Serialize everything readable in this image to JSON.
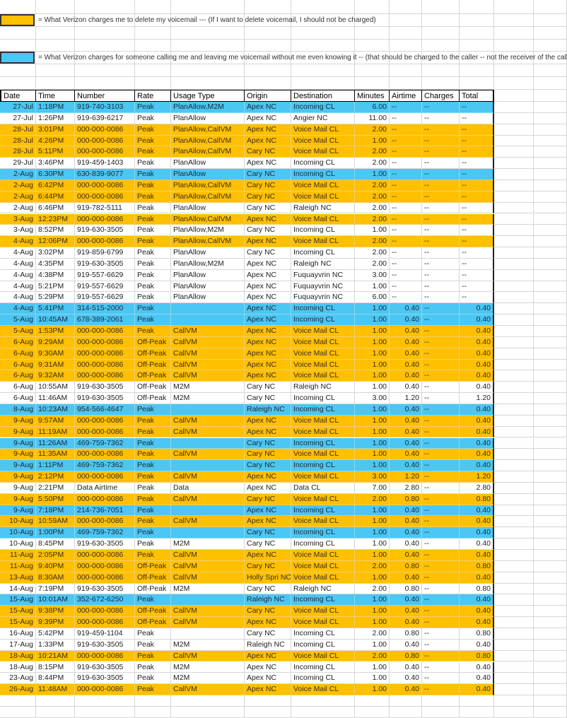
{
  "legend": [
    {
      "color": "#FFC000",
      "text": "= What Verizon charges me to delete my voicemail --- (If I want to delete voicemail, I should not be charged)"
    },
    {
      "color": "#4CC6F2",
      "text": "= What Verizon charges for someone calling me and leaving me voicemail without me even knowing it -- (that should be charged to the caller  -- not the receiver of the call."
    }
  ],
  "highlight_colors": {
    "orange": "#FFC000",
    "blue": "#4CC6F2"
  },
  "columns": [
    "Date",
    "Time",
    "Number",
    "Rate",
    "Usage Type",
    "Origin",
    "Destination",
    "Minutes",
    "Airtime",
    "Charges",
    "Total"
  ],
  "rows": [
    {
      "h": "blue",
      "c": [
        "27-Jul",
        "1:18PM",
        "919-740-3103",
        "Peak",
        "PlanAllow,M2M",
        "Apex NC",
        "Incoming CL",
        "6.00",
        "--",
        "--",
        "--"
      ]
    },
    {
      "h": "",
      "c": [
        "27-Jul",
        "1:26PM",
        "919-639-6217",
        "Peak",
        "PlanAllow",
        "Apex NC",
        "Angier NC",
        "11.00",
        "--",
        "--",
        "--"
      ]
    },
    {
      "h": "orange",
      "c": [
        "28-Jul",
        "3:01PM",
        "000-000-0086",
        "Peak",
        "PlanAllow,CallVM",
        "Apex NC",
        "Voice Mail CL",
        "2.00",
        "--",
        "--",
        "--"
      ]
    },
    {
      "h": "orange",
      "c": [
        "28-Jul",
        "4:26PM",
        "000-000-0086",
        "Peak",
        "PlanAllow,CallVM",
        "Apex NC",
        "Voice Mail CL",
        "1.00",
        "--",
        "--",
        "--"
      ]
    },
    {
      "h": "orange",
      "c": [
        "28-Jul",
        "5:11PM",
        "000-000-0086",
        "Peak",
        "PlanAllow,CallVM",
        "Cary NC",
        "Voice Mail CL",
        "2.00",
        "--",
        "--",
        "--"
      ]
    },
    {
      "h": "",
      "c": [
        "29-Jul",
        "3:46PM",
        "919-459-1403",
        "Peak",
        "PlanAllow",
        "Apex NC",
        "Incoming CL",
        "2.00",
        "--",
        "--",
        "--"
      ]
    },
    {
      "h": "blue",
      "c": [
        "2-Aug",
        "6:30PM",
        "630-839-9077",
        "Peak",
        "PlanAllow",
        "Cary NC",
        "Incoming CL",
        "1.00",
        "--",
        "--",
        "--"
      ]
    },
    {
      "h": "orange",
      "c": [
        "2-Aug",
        "6:42PM",
        "000-000-0086",
        "Peak",
        "PlanAllow,CallVM",
        "Cary NC",
        "Voice Mail CL",
        "2.00",
        "--",
        "--",
        "--"
      ]
    },
    {
      "h": "orange",
      "c": [
        "2-Aug",
        "6:44PM",
        "000-000-0086",
        "Peak",
        "PlanAllow,CallVM",
        "Cary NC",
        "Voice Mail CL",
        "2.00",
        "--",
        "--",
        "--"
      ]
    },
    {
      "h": "",
      "c": [
        "2-Aug",
        "6:46PM",
        "919-782-5111",
        "Peak",
        "PlanAllow",
        "Cary NC",
        "Raleigh NC",
        "2.00",
        "--",
        "--",
        "--"
      ]
    },
    {
      "h": "orange",
      "c": [
        "3-Aug",
        "12:23PM",
        "000-000-0086",
        "Peak",
        "PlanAllow,CallVM",
        "Apex NC",
        "Voice Mail CL",
        "2.00",
        "--",
        "--",
        "--"
      ]
    },
    {
      "h": "",
      "c": [
        "3-Aug",
        "8:52PM",
        "919-630-3505",
        "Peak",
        "PlanAllow,M2M",
        "Cary NC",
        "Incoming CL",
        "1.00",
        "--",
        "--",
        "--"
      ]
    },
    {
      "h": "orange",
      "c": [
        "4-Aug",
        "12:06PM",
        "000-000-0086",
        "Peak",
        "PlanAllow,CallVM",
        "Apex NC",
        "Voice Mail CL",
        "2.00",
        "--",
        "--",
        "--"
      ]
    },
    {
      "h": "",
      "c": [
        "4-Aug",
        "3:02PM",
        "919-859-6799",
        "Peak",
        "PlanAllow",
        "Cary NC",
        "Incoming CL",
        "2.00",
        "--",
        "--",
        "--"
      ]
    },
    {
      "h": "",
      "c": [
        "4-Aug",
        "4:35PM",
        "919-630-3505",
        "Peak",
        "PlanAllow,M2M",
        "Apex NC",
        "Raleigh NC",
        "2.00",
        "--",
        "--",
        "--"
      ]
    },
    {
      "h": "",
      "c": [
        "4-Aug",
        "4:38PM",
        "919-557-6629",
        "Peak",
        "PlanAllow",
        "Apex NC",
        "Fuquayvrin NC",
        "3.00",
        "--",
        "--",
        "--"
      ]
    },
    {
      "h": "",
      "c": [
        "4-Aug",
        "5:21PM",
        "919-557-6629",
        "Peak",
        "PlanAllow",
        "Apex NC",
        "Fuquayvrin NC",
        "1.00",
        "--",
        "--",
        "--"
      ]
    },
    {
      "h": "",
      "c": [
        "4-Aug",
        "5:29PM",
        "919-557-6629",
        "Peak",
        "PlanAllow",
        "Apex NC",
        "Fuquayvrin NC",
        "6.00",
        "--",
        "--",
        "--"
      ]
    },
    {
      "h": "blue",
      "c": [
        "4-Aug",
        "5:41PM",
        "314-515-2000",
        "Peak",
        "",
        "Apex NC",
        "Incoming CL",
        "1.00",
        "0.40",
        "--",
        "0.40"
      ]
    },
    {
      "h": "blue",
      "c": [
        "5-Aug",
        "10:45AM",
        "678-389-2061",
        "Peak",
        "",
        "Apex NC",
        "Incoming CL",
        "1.00",
        "0.40",
        "--",
        "0.40"
      ]
    },
    {
      "h": "orange",
      "c": [
        "5-Aug",
        "1:53PM",
        "000-000-0086",
        "Peak",
        "CallVM",
        "Apex NC",
        "Voice Mail CL",
        "1.00",
        "0.40",
        "--",
        "0.40"
      ]
    },
    {
      "h": "orange",
      "c": [
        "6-Aug",
        "9:29AM",
        "000-000-0086",
        "Off-Peak",
        "CallVM",
        "Apex NC",
        "Voice Mail CL",
        "1.00",
        "0.40",
        "--",
        "0.40"
      ]
    },
    {
      "h": "orange",
      "c": [
        "6-Aug",
        "9:30AM",
        "000-000-0086",
        "Off-Peak",
        "CallVM",
        "Apex NC",
        "Voice Mail CL",
        "1.00",
        "0.40",
        "--",
        "0.40"
      ]
    },
    {
      "h": "orange",
      "c": [
        "6-Aug",
        "9:31AM",
        "000-000-0086",
        "Off-Peak",
        "CallVM",
        "Apex NC",
        "Voice Mail CL",
        "1.00",
        "0.40",
        "--",
        "0.40"
      ]
    },
    {
      "h": "orange",
      "c": [
        "6-Aug",
        "9:32AM",
        "000-000-0086",
        "Off-Peak",
        "CallVM",
        "Apex NC",
        "Voice Mail CL",
        "1.00",
        "0.40",
        "--",
        "0.40"
      ]
    },
    {
      "h": "",
      "c": [
        "6-Aug",
        "10:55AM",
        "919-630-3505",
        "Off-Peak",
        "M2M",
        "Cary NC",
        "Raleigh NC",
        "1.00",
        "0.40",
        "--",
        "0.40"
      ]
    },
    {
      "h": "",
      "c": [
        "6-Aug",
        "11:46AM",
        "919-630-3505",
        "Off-Peak",
        "M2M",
        "Cary NC",
        "Incoming CL",
        "3.00",
        "1.20",
        "--",
        "1.20"
      ]
    },
    {
      "h": "blue",
      "c": [
        "8-Aug",
        "10:23AM",
        "954-566-4647",
        "Peak",
        "",
        "Raleigh NC",
        "Incoming CL",
        "1.00",
        "0.40",
        "--",
        "0.40"
      ]
    },
    {
      "h": "orange",
      "c": [
        "9-Aug",
        "9:57AM",
        "000-000-0086",
        "Peak",
        "CallVM",
        "Apex NC",
        "Voice Mail CL",
        "1.00",
        "0.40",
        "--",
        "0.40"
      ]
    },
    {
      "h": "orange",
      "c": [
        "9-Aug",
        "11:19AM",
        "000-000-0086",
        "Peak",
        "CallVM",
        "Apex NC",
        "Voice Mail CL",
        "1.00",
        "0.40",
        "--",
        "0.40"
      ]
    },
    {
      "h": "blue",
      "c": [
        "9-Aug",
        "11:26AM",
        "469-759-7362",
        "Peak",
        "",
        "Cary NC",
        "Incoming CL",
        "1.00",
        "0.40",
        "--",
        "0.40"
      ]
    },
    {
      "h": "orange",
      "c": [
        "9-Aug",
        "11:35AM",
        "000-000-0086",
        "Peak",
        "CallVM",
        "Cary NC",
        "Voice Mail CL",
        "1.00",
        "0.40",
        "--",
        "0.40"
      ]
    },
    {
      "h": "blue",
      "c": [
        "9-Aug",
        "1:11PM",
        "469-759-7362",
        "Peak",
        "",
        "Cary NC",
        "Incoming CL",
        "1.00",
        "0.40",
        "--",
        "0.40"
      ]
    },
    {
      "h": "orange",
      "c": [
        "9-Aug",
        "2:12PM",
        "000-000-0086",
        "Peak",
        "CallVM",
        "Apex NC",
        "Voice Mail CL",
        "3.00",
        "1.20",
        "--",
        "1.20"
      ]
    },
    {
      "h": "",
      "c": [
        "9-Aug",
        "2:21PM",
        "Data Airtime",
        "Peak",
        "Data",
        "Apex NC",
        "Data CL",
        "7.00",
        "2.80",
        "--",
        "2.80"
      ]
    },
    {
      "h": "orange",
      "c": [
        "9-Aug",
        "5:50PM",
        "000-000-0086",
        "Peak",
        "CallVM",
        "Cary NC",
        "Voice Mail CL",
        "2.00",
        "0.80",
        "--",
        "0.80"
      ]
    },
    {
      "h": "blue",
      "c": [
        "9-Aug",
        "7:18PM",
        "214-736-7051",
        "Peak",
        "",
        "Apex NC",
        "Incoming CL",
        "1.00",
        "0.40",
        "--",
        "0.40"
      ]
    },
    {
      "h": "orange",
      "c": [
        "10-Aug",
        "10:59AM",
        "000-000-0086",
        "Peak",
        "CallVM",
        "Apex NC",
        "Voice Mail CL",
        "1.00",
        "0.40",
        "--",
        "0.40"
      ]
    },
    {
      "h": "blue",
      "c": [
        "10-Aug",
        "1:00PM",
        "469-759-7362",
        "Peak",
        "",
        "Cary NC",
        "Incoming CL",
        "1.00",
        "0.40",
        "--",
        "0.40"
      ]
    },
    {
      "h": "",
      "c": [
        "10-Aug",
        "8:45PM",
        "919-630-3505",
        "Peak",
        "M2M",
        "Cary NC",
        "Incoming CL",
        "1.00",
        "0.40",
        "--",
        "0.40"
      ]
    },
    {
      "h": "orange",
      "c": [
        "11-Aug",
        "2:05PM",
        "000-000-0086",
        "Peak",
        "CallVM",
        "Apex NC",
        "Voice Mail CL",
        "1.00",
        "0.40",
        "--",
        "0.40"
      ]
    },
    {
      "h": "orange",
      "c": [
        "11-Aug",
        "9:40PM",
        "000-000-0086",
        "Off-Peak",
        "CallVM",
        "Cary NC",
        "Voice Mail CL",
        "2.00",
        "0.80",
        "--",
        "0.80"
      ]
    },
    {
      "h": "orange",
      "c": [
        "13-Aug",
        "8:30AM",
        "000-000-0086",
        "Off-Peak",
        "CallVM",
        "Holly Spri NC",
        "Voice Mail CL",
        "1.00",
        "0.40",
        "--",
        "0.40"
      ]
    },
    {
      "h": "",
      "c": [
        "14-Aug",
        "7:19PM",
        "919-630-3505",
        "Off-Peak",
        "M2M",
        "Cary NC",
        "Raleigh NC",
        "2.00",
        "0.80",
        "--",
        "0.80"
      ]
    },
    {
      "h": "blue",
      "c": [
        "15-Aug",
        "10:01AM",
        "352-672-6250",
        "Peak",
        "",
        "Raleigh NC",
        "Incoming CL",
        "1.00",
        "0.40",
        "--",
        "0.40"
      ]
    },
    {
      "h": "orange",
      "c": [
        "15-Aug",
        "9:38PM",
        "000-000-0086",
        "Off-Peak",
        "CallVM",
        "Cary NC",
        "Voice Mail CL",
        "1.00",
        "0.40",
        "--",
        "0.40"
      ]
    },
    {
      "h": "orange",
      "c": [
        "15-Aug",
        "9:39PM",
        "000-000-0086",
        "Off-Peak",
        "CallVM",
        "Apex NC",
        "Voice Mail CL",
        "1.00",
        "0.40",
        "--",
        "0.40"
      ]
    },
    {
      "h": "",
      "c": [
        "16-Aug",
        "5:42PM",
        "919-459-1104",
        "Peak",
        "",
        "Cary NC",
        "Incoming CL",
        "2.00",
        "0.80",
        "--",
        "0.80"
      ]
    },
    {
      "h": "",
      "c": [
        "17-Aug",
        "1:33PM",
        "919-630-3505",
        "Peak",
        "M2M",
        "Raleigh NC",
        "Incoming CL",
        "1.00",
        "0.40",
        "--",
        "0.40"
      ]
    },
    {
      "h": "orange",
      "c": [
        "18-Aug",
        "10:21AM",
        "000-000-0086",
        "Peak",
        "CallVM",
        "Apex NC",
        "Voice Mail CL",
        "2.00",
        "0.80",
        "--",
        "0.80"
      ]
    },
    {
      "h": "",
      "c": [
        "18-Aug",
        "8:15PM",
        "919-630-3505",
        "Peak",
        "M2M",
        "Apex NC",
        "Incoming CL",
        "1.00",
        "0.40",
        "--",
        "0.40"
      ]
    },
    {
      "h": "",
      "c": [
        "23-Aug",
        "8:44PM",
        "919-630-3505",
        "Peak",
        "M2M",
        "Apex NC",
        "Incoming CL",
        "1.00",
        "0.40",
        "--",
        "0.40"
      ]
    },
    {
      "h": "orange",
      "c": [
        "26-Aug",
        "11:48AM",
        "000-000-0086",
        "Peak",
        "CallVM",
        "Apex NC",
        "Voice Mail CL",
        "1.00",
        "0.40",
        "--",
        "0.40"
      ]
    }
  ]
}
